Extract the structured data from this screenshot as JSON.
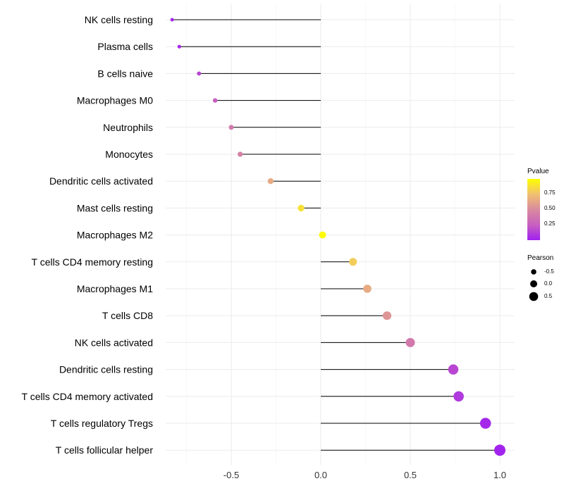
{
  "chart_data": {
    "type": "lollipop",
    "xlabel": "",
    "ylabel": "",
    "xlim": [
      -0.9,
      1.07
    ],
    "x_ticks": [
      -0.5,
      0.0,
      0.5,
      1.0
    ],
    "x_tick_labels": [
      "-0.5",
      "0.0",
      "0.5",
      "1.0"
    ],
    "grid": true,
    "categories": [
      "NK cells resting",
      "Plasma cells",
      "B cells naive",
      "Macrophages M0",
      "Neutrophils",
      "Monocytes",
      "Dendritic cells activated",
      "Mast cells resting",
      "Macrophages M2",
      "T cells CD4 memory resting",
      "Macrophages M1",
      "T cells CD8",
      "NK cells activated",
      "Dendritic cells resting",
      "T cells CD4 memory activated",
      "T cells regulatory  Tregs",
      "T cells follicular helper"
    ],
    "pearson": [
      -0.83,
      -0.79,
      -0.68,
      -0.59,
      -0.5,
      -0.45,
      -0.28,
      -0.11,
      0.01,
      0.18,
      0.26,
      0.37,
      0.5,
      0.74,
      0.77,
      0.92,
      1.0
    ],
    "pvalue": [
      0.01,
      0.03,
      0.15,
      0.25,
      0.4,
      0.45,
      0.65,
      0.88,
      0.98,
      0.8,
      0.65,
      0.55,
      0.4,
      0.15,
      0.1,
      0.03,
      0.01
    ],
    "legend": {
      "position": "right",
      "color_title": "Pvalue",
      "color_ticks": [
        "0.75",
        "0.50",
        "0.25"
      ],
      "color_low": "#a020f0",
      "color_high": "#ffff00",
      "size_title": "Pearson",
      "size_labels": [
        "-0.5",
        "0.0",
        "0.5"
      ]
    }
  }
}
